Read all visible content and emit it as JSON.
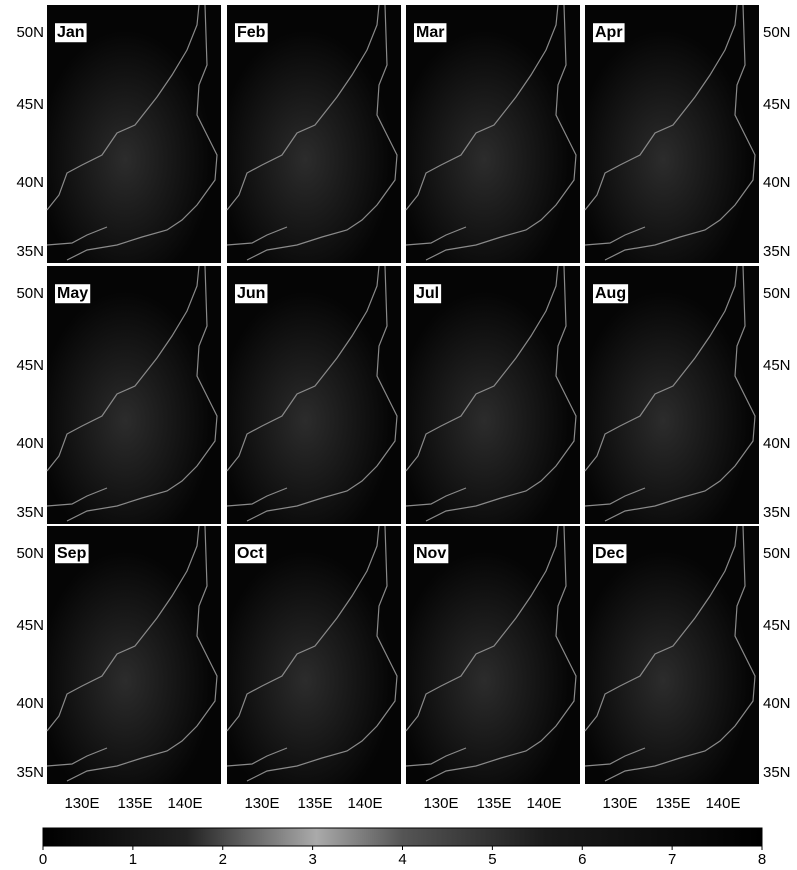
{
  "panels": [
    {
      "label": "Jan"
    },
    {
      "label": "Feb"
    },
    {
      "label": "Mar"
    },
    {
      "label": "Apr"
    },
    {
      "label": "May"
    },
    {
      "label": "Jun"
    },
    {
      "label": "Jul"
    },
    {
      "label": "Aug"
    },
    {
      "label": "Sep"
    },
    {
      "label": "Oct"
    },
    {
      "label": "Nov"
    },
    {
      "label": "Dec"
    }
  ],
  "latitude_labels": [
    "50N",
    "45N",
    "40N",
    "35N"
  ],
  "longitude_labels": [
    "130E",
    "135E",
    "140E"
  ],
  "colorbar": {
    "lim": [
      0,
      8
    ],
    "ticks": [
      0,
      1,
      2,
      3,
      4,
      5,
      6,
      7,
      8
    ]
  }
}
